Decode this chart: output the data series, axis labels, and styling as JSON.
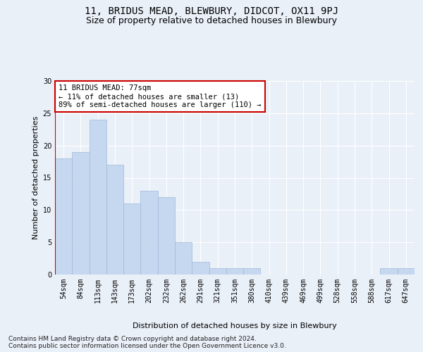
{
  "title1": "11, BRIDUS MEAD, BLEWBURY, DIDCOT, OX11 9PJ",
  "title2": "Size of property relative to detached houses in Blewbury",
  "xlabel": "Distribution of detached houses by size in Blewbury",
  "ylabel": "Number of detached properties",
  "categories": [
    "54sqm",
    "84sqm",
    "113sqm",
    "143sqm",
    "173sqm",
    "202sqm",
    "232sqm",
    "262sqm",
    "291sqm",
    "321sqm",
    "351sqm",
    "380sqm",
    "410sqm",
    "439sqm",
    "469sqm",
    "499sqm",
    "528sqm",
    "558sqm",
    "588sqm",
    "617sqm",
    "647sqm"
  ],
  "values": [
    18,
    19,
    24,
    17,
    11,
    13,
    12,
    5,
    2,
    1,
    1,
    1,
    0,
    0,
    0,
    0,
    0,
    0,
    0,
    1,
    1
  ],
  "bar_color": "#c5d8f0",
  "bar_edge_color": "#a0b8d8",
  "vline_color": "#cc0000",
  "annotation_text": "11 BRIDUS MEAD: 77sqm\n← 11% of detached houses are smaller (13)\n89% of semi-detached houses are larger (110) →",
  "annotation_box_color": "#ffffff",
  "annotation_box_edge": "#cc0000",
  "ylim": [
    0,
    30
  ],
  "yticks": [
    0,
    5,
    10,
    15,
    20,
    25,
    30
  ],
  "footer1": "Contains HM Land Registry data © Crown copyright and database right 2024.",
  "footer2": "Contains public sector information licensed under the Open Government Licence v3.0.",
  "bg_color": "#eaf0f8",
  "plot_bg_color": "#eaf0f8",
  "grid_color": "#ffffff",
  "title1_fontsize": 10,
  "title2_fontsize": 9,
  "axis_label_fontsize": 8,
  "tick_fontsize": 7,
  "footer_fontsize": 6.5,
  "annotation_fontsize": 7.5
}
